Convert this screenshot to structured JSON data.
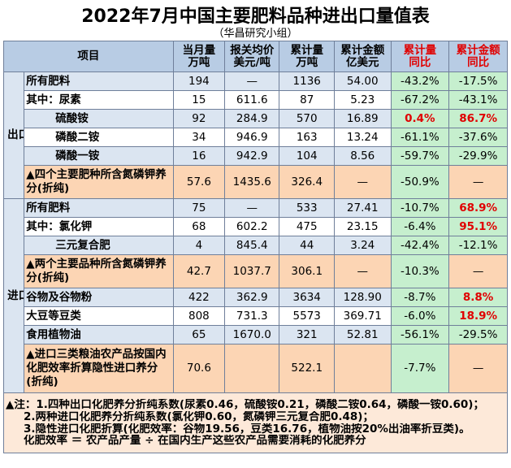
{
  "title": "2022年7月中国主要肥料品种进出口量值表",
  "subtitle": "（华昌研究小组）",
  "headers": {
    "item": "项目",
    "month_qty": [
      "当月量",
      "万吨"
    ],
    "avg_price": [
      "报关均价",
      "美元/吨"
    ],
    "cum_qty": [
      "累计量",
      "万吨"
    ],
    "cum_amount": [
      "累计金额",
      "亿美元"
    ],
    "cum_qty_yoy": [
      "累计量",
      "同比"
    ],
    "cum_amount_yoy": [
      "累计金额",
      "同比"
    ]
  },
  "sections": {
    "export": "出口",
    "import": "进口"
  },
  "export_rows": [
    {
      "name": "所有肥料",
      "month": "194",
      "price": "—",
      "cum": "1136",
      "amount": "54.00",
      "qty_yoy": "-43.2%",
      "amt_yoy": "-17.5%"
    },
    {
      "name": "其中：尿素",
      "month": "15",
      "price": "611.6",
      "cum": "87",
      "amount": "5.23",
      "qty_yoy": "-67.2%",
      "amt_yoy": "-43.1%"
    },
    {
      "name": "硫酸铵",
      "month": "92",
      "price": "284.9",
      "cum": "570",
      "amount": "16.89",
      "qty_yoy": "0.4%",
      "amt_yoy": "86.7%"
    },
    {
      "name": "磷酸二铵",
      "month": "34",
      "price": "946.9",
      "cum": "163",
      "amount": "13.24",
      "qty_yoy": "-61.1%",
      "amt_yoy": "-37.6%"
    },
    {
      "name": "磷酸一铵",
      "month": "16",
      "price": "942.9",
      "cum": "104",
      "amount": "8.56",
      "qty_yoy": "-59.7%",
      "amt_yoy": "-29.9%"
    },
    {
      "name": "▲四个主要肥种所含氮磷钾养分(折纯)",
      "month": "57.6",
      "price": "1435.6",
      "cum": "326.4",
      "amount": "—",
      "qty_yoy": "-50.9%",
      "amt_yoy": "—"
    }
  ],
  "import_rows": [
    {
      "name": "所有肥料",
      "month": "75",
      "price": "—",
      "cum": "533",
      "amount": "27.41",
      "qty_yoy": "-10.7%",
      "amt_yoy": "68.9%"
    },
    {
      "name": "其中：氯化钾",
      "month": "68",
      "price": "602.2",
      "cum": "475",
      "amount": "23.15",
      "qty_yoy": "-6.4%",
      "amt_yoy": "95.1%"
    },
    {
      "name": "三元复合肥",
      "month": "4",
      "price": "845.4",
      "cum": "44",
      "amount": "3.24",
      "qty_yoy": "-42.4%",
      "amt_yoy": "-12.1%"
    },
    {
      "name": "▲两个主要品种所含氮磷钾养分(折纯)",
      "month": "42.7",
      "price": "1037.7",
      "cum": "306.1",
      "amount": "—",
      "qty_yoy": "-10.3%",
      "amt_yoy": "—"
    },
    {
      "name": "谷物及谷物粉",
      "month": "422",
      "price": "362.9",
      "cum": "3634",
      "amount": "128.90",
      "qty_yoy": "-8.7%",
      "amt_yoy": "8.8%"
    },
    {
      "name": "大豆等豆类",
      "month": "808",
      "price": "731.3",
      "cum": "5573",
      "amount": "369.71",
      "qty_yoy": "-6.0%",
      "amt_yoy": "18.9%"
    },
    {
      "name": "食用植物油",
      "month": "65",
      "price": "1670.0",
      "cum": "321",
      "amount": "52.81",
      "qty_yoy": "-56.1%",
      "amt_yoy": "-29.5%"
    },
    {
      "name": "▲进口三类粮油农产品按国内化肥效率折算隐性进口养分(折纯)",
      "month": "70.6",
      "price": "",
      "cum": "522.1",
      "amount": "",
      "qty_yoy": "-7.7%",
      "amt_yoy": "—"
    }
  ],
  "notes": [
    "▲注：1.四种出口化肥养分折纯系数(尿素0.46，硫酸铵0.21，磷酸二铵0.64，磷酸一铵0.60)；",
    "2.两种进口化肥养分折纯系数(氯化钾0.60，氮磷钾三元复合肥0.48)；",
    "3.隐性进口化肥折算(化肥效率：谷物19.56，豆类16.76，植物油按20%出油率折豆类)。",
    "化肥效率 ＝ 农产品产量 ÷ 在国内生产这些农产品需要消耗的化肥养分"
  ]
}
